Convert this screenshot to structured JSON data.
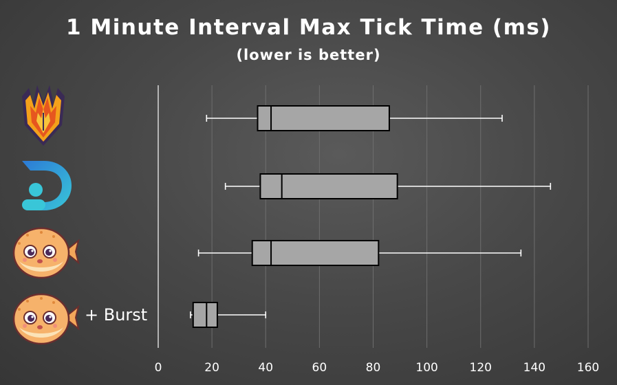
{
  "chart_title": "1 Minute Interval Max Tick Time (ms)",
  "chart_subtitle": "(lower is better)",
  "colors": {
    "box_fill": "#a6a6a6",
    "box_stroke": "#000000",
    "whisker": "#ffffff",
    "gridline": "#6e6e6e",
    "axis_line": "#d9d9d9",
    "tick_label": "#ffffff"
  },
  "logos": [
    "purpur-flame-icon",
    "pufferfish-d-icon",
    "pufferfish-icon",
    "pufferfish-icon"
  ],
  "chart_data": {
    "type": "box",
    "title": "1 Minute Interval Max Tick Time (ms)",
    "subtitle": "(lower is better)",
    "xlim": [
      0,
      160
    ],
    "xticks": [
      0,
      20,
      40,
      60,
      80,
      100,
      120,
      140,
      160
    ],
    "grid": true,
    "series": [
      {
        "min": 18,
        "q1": 37,
        "median": 42,
        "q3": 86,
        "max": 128
      },
      {
        "min": 25,
        "q1": 38,
        "median": 46,
        "q3": 89,
        "max": 146
      },
      {
        "min": 15,
        "q1": 35,
        "median": 42,
        "q3": 82,
        "max": 135
      },
      {
        "name": "+ Burst",
        "min": 12,
        "q1": 13,
        "median": 18,
        "q3": 22,
        "max": 40
      }
    ]
  }
}
